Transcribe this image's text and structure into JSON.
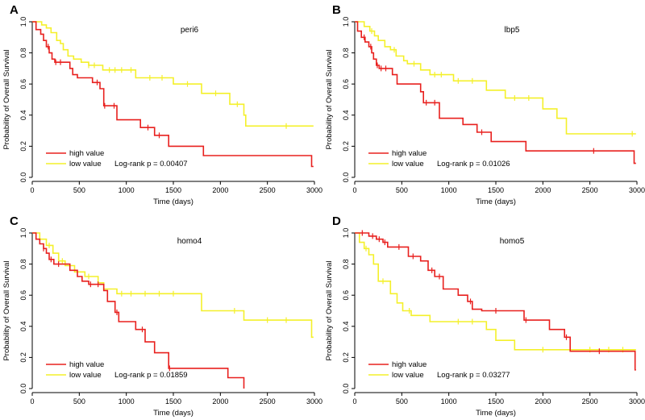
{
  "figure": {
    "panels": [
      "A",
      "B",
      "C",
      "D"
    ]
  },
  "colors": {
    "high": "#e8201e",
    "low": "#f4f02a",
    "axis": "#000000"
  },
  "chart_data": [
    {
      "type": "line",
      "panel_label": "A",
      "title": "peri6",
      "xlabel": "Time (days)",
      "ylabel": "Probability of Overall Survival",
      "xlim": [
        0,
        3000
      ],
      "ylim": [
        0,
        1
      ],
      "xticks": [
        0,
        500,
        1000,
        1500,
        2000,
        2500,
        3000
      ],
      "yticks": [
        "0.0",
        "0.2",
        "0.4",
        "0.6",
        "0.8",
        "1.0"
      ],
      "legend": [
        "high value",
        "low value"
      ],
      "pvalue": "Log-rank p = 0.00407",
      "series": [
        {
          "name": "high value",
          "color": "#e8201e",
          "steps": [
            [
              0,
              1.0
            ],
            [
              40,
              0.95
            ],
            [
              90,
              0.92
            ],
            [
              120,
              0.88
            ],
            [
              150,
              0.84
            ],
            [
              180,
              0.8
            ],
            [
              210,
              0.76
            ],
            [
              240,
              0.74
            ],
            [
              400,
              0.7
            ],
            [
              430,
              0.66
            ],
            [
              480,
              0.64
            ],
            [
              640,
              0.61
            ],
            [
              720,
              0.57
            ],
            [
              760,
              0.46
            ],
            [
              900,
              0.37
            ],
            [
              1150,
              0.32
            ],
            [
              1300,
              0.27
            ],
            [
              1450,
              0.2
            ],
            [
              1820,
              0.14
            ],
            [
              2970,
              0.07
            ]
          ],
          "censor": [
            [
              170,
              0.84
            ],
            [
              250,
              0.74
            ],
            [
              300,
              0.74
            ],
            [
              690,
              0.61
            ],
            [
              770,
              0.46
            ],
            [
              870,
              0.46
            ],
            [
              1230,
              0.32
            ],
            [
              1350,
              0.27
            ]
          ],
          "end": 2990
        },
        {
          "name": "low value",
          "color": "#f4f02a",
          "steps": [
            [
              0,
              1.0
            ],
            [
              100,
              0.98
            ],
            [
              150,
              0.96
            ],
            [
              200,
              0.93
            ],
            [
              260,
              0.88
            ],
            [
              300,
              0.86
            ],
            [
              330,
              0.82
            ],
            [
              380,
              0.78
            ],
            [
              440,
              0.76
            ],
            [
              520,
              0.74
            ],
            [
              600,
              0.72
            ],
            [
              750,
              0.69
            ],
            [
              1100,
              0.64
            ],
            [
              1500,
              0.6
            ],
            [
              1800,
              0.54
            ],
            [
              2100,
              0.47
            ],
            [
              2250,
              0.4
            ],
            [
              2270,
              0.33
            ]
          ],
          "censor": [
            [
              600,
              0.72
            ],
            [
              660,
              0.72
            ],
            [
              820,
              0.69
            ],
            [
              880,
              0.69
            ],
            [
              950,
              0.69
            ],
            [
              1050,
              0.69
            ],
            [
              1250,
              0.64
            ],
            [
              1380,
              0.64
            ],
            [
              1650,
              0.6
            ],
            [
              1950,
              0.54
            ],
            [
              2180,
              0.47
            ],
            [
              2700,
              0.33
            ]
          ],
          "end": 2990
        }
      ]
    },
    {
      "type": "line",
      "panel_label": "B",
      "title": "lbp5",
      "xlabel": "Time (days)",
      "ylabel": "Probability of Overall Survival",
      "xlim": [
        0,
        3000
      ],
      "ylim": [
        0,
        1
      ],
      "xticks": [
        0,
        500,
        1000,
        1500,
        2000,
        2500,
        3000
      ],
      "yticks": [
        "0.0",
        "0.2",
        "0.4",
        "0.6",
        "0.8",
        "1.0"
      ],
      "legend": [
        "high value",
        "low value"
      ],
      "pvalue": "Log-rank p = 0.01026",
      "series": [
        {
          "name": "high value",
          "color": "#e8201e",
          "steps": [
            [
              0,
              1.0
            ],
            [
              30,
              0.94
            ],
            [
              70,
              0.9
            ],
            [
              110,
              0.87
            ],
            [
              150,
              0.84
            ],
            [
              180,
              0.8
            ],
            [
              200,
              0.76
            ],
            [
              230,
              0.72
            ],
            [
              260,
              0.7
            ],
            [
              400,
              0.66
            ],
            [
              450,
              0.6
            ],
            [
              700,
              0.55
            ],
            [
              730,
              0.48
            ],
            [
              900,
              0.38
            ],
            [
              1150,
              0.34
            ],
            [
              1300,
              0.29
            ],
            [
              1450,
              0.23
            ],
            [
              1820,
              0.17
            ],
            [
              2970,
              0.09
            ]
          ],
          "censor": [
            [
              100,
              0.9
            ],
            [
              170,
              0.84
            ],
            [
              240,
              0.72
            ],
            [
              280,
              0.7
            ],
            [
              330,
              0.7
            ],
            [
              760,
              0.48
            ],
            [
              850,
              0.48
            ],
            [
              1350,
              0.29
            ],
            [
              2540,
              0.17
            ]
          ],
          "end": 2990
        },
        {
          "name": "low value",
          "color": "#f4f02a",
          "steps": [
            [
              0,
              1.0
            ],
            [
              100,
              0.97
            ],
            [
              160,
              0.94
            ],
            [
              210,
              0.91
            ],
            [
              250,
              0.88
            ],
            [
              320,
              0.84
            ],
            [
              380,
              0.82
            ],
            [
              440,
              0.78
            ],
            [
              520,
              0.75
            ],
            [
              560,
              0.73
            ],
            [
              700,
              0.69
            ],
            [
              800,
              0.66
            ],
            [
              1050,
              0.62
            ],
            [
              1400,
              0.56
            ],
            [
              1600,
              0.51
            ],
            [
              2000,
              0.44
            ],
            [
              2150,
              0.38
            ],
            [
              2250,
              0.28
            ]
          ],
          "censor": [
            [
              180,
              0.94
            ],
            [
              420,
              0.82
            ],
            [
              630,
              0.73
            ],
            [
              850,
              0.66
            ],
            [
              920,
              0.66
            ],
            [
              1100,
              0.62
            ],
            [
              1250,
              0.62
            ],
            [
              1700,
              0.51
            ],
            [
              1850,
              0.51
            ],
            [
              2950,
              0.28
            ]
          ],
          "end": 2990
        }
      ]
    },
    {
      "type": "line",
      "panel_label": "C",
      "title": "homo4",
      "xlabel": "Time (days)",
      "ylabel": "Probability of Overall Survival",
      "xlim": [
        0,
        3000
      ],
      "ylim": [
        0,
        1
      ],
      "xticks": [
        0,
        500,
        1000,
        1500,
        2000,
        2500,
        3000
      ],
      "yticks": [
        "0.0",
        "0.2",
        "0.4",
        "0.6",
        "0.8",
        "1.0"
      ],
      "legend": [
        "high value",
        "low value"
      ],
      "pvalue": "Log-rank p = 0.01859",
      "series": [
        {
          "name": "high value",
          "color": "#e8201e",
          "steps": [
            [
              0,
              1.0
            ],
            [
              40,
              0.96
            ],
            [
              80,
              0.93
            ],
            [
              120,
              0.9
            ],
            [
              150,
              0.87
            ],
            [
              180,
              0.83
            ],
            [
              230,
              0.8
            ],
            [
              400,
              0.76
            ],
            [
              480,
              0.72
            ],
            [
              530,
              0.69
            ],
            [
              600,
              0.67
            ],
            [
              760,
              0.63
            ],
            [
              800,
              0.56
            ],
            [
              880,
              0.49
            ],
            [
              920,
              0.43
            ],
            [
              1100,
              0.38
            ],
            [
              1200,
              0.3
            ],
            [
              1300,
              0.23
            ],
            [
              1450,
              0.13
            ],
            [
              2080,
              0.07
            ],
            [
              2250,
              0.0
            ]
          ],
          "censor": [
            [
              120,
              0.9
            ],
            [
              200,
              0.83
            ],
            [
              280,
              0.8
            ],
            [
              620,
              0.67
            ],
            [
              700,
              0.67
            ],
            [
              900,
              0.49
            ],
            [
              1170,
              0.38
            ],
            [
              1460,
              0.13
            ]
          ],
          "end": 2250
        },
        {
          "name": "low value",
          "color": "#f4f02a",
          "steps": [
            [
              0,
              1.0
            ],
            [
              80,
              0.96
            ],
            [
              150,
              0.92
            ],
            [
              220,
              0.87
            ],
            [
              280,
              0.82
            ],
            [
              350,
              0.79
            ],
            [
              450,
              0.75
            ],
            [
              560,
              0.72
            ],
            [
              700,
              0.68
            ],
            [
              760,
              0.64
            ],
            [
              900,
              0.61
            ],
            [
              1800,
              0.5
            ],
            [
              2250,
              0.44
            ],
            [
              2970,
              0.33
            ]
          ],
          "censor": [
            [
              180,
              0.92
            ],
            [
              320,
              0.82
            ],
            [
              600,
              0.72
            ],
            [
              950,
              0.61
            ],
            [
              1050,
              0.61
            ],
            [
              1200,
              0.61
            ],
            [
              1350,
              0.61
            ],
            [
              1500,
              0.61
            ],
            [
              2150,
              0.5
            ],
            [
              2500,
              0.44
            ],
            [
              2700,
              0.44
            ]
          ],
          "end": 2990
        }
      ]
    },
    {
      "type": "line",
      "panel_label": "D",
      "title": "homo5",
      "xlabel": "Time (days)",
      "ylabel": "Probability of Overall Survival",
      "xlim": [
        0,
        3000
      ],
      "ylim": [
        0,
        1
      ],
      "xticks": [
        0,
        500,
        1000,
        1500,
        2000,
        2500,
        3000
      ],
      "yticks": [
        "0.0",
        "0.2",
        "0.4",
        "0.6",
        "0.8",
        "1.0"
      ],
      "legend": [
        "high value",
        "low value"
      ],
      "pvalue": "Log-rank p = 0.03277",
      "series": [
        {
          "name": "high value",
          "color": "#e8201e",
          "steps": [
            [
              0,
              1.0
            ],
            [
              150,
              0.98
            ],
            [
              230,
              0.96
            ],
            [
              300,
              0.94
            ],
            [
              350,
              0.91
            ],
            [
              570,
              0.85
            ],
            [
              700,
              0.82
            ],
            [
              780,
              0.76
            ],
            [
              850,
              0.72
            ],
            [
              940,
              0.64
            ],
            [
              1100,
              0.6
            ],
            [
              1200,
              0.56
            ],
            [
              1250,
              0.51
            ],
            [
              1350,
              0.5
            ],
            [
              1800,
              0.44
            ],
            [
              2070,
              0.38
            ],
            [
              2230,
              0.33
            ],
            [
              2290,
              0.24
            ],
            [
              2980,
              0.12
            ]
          ],
          "censor": [
            [
              80,
              1.0
            ],
            [
              190,
              0.98
            ],
            [
              260,
              0.96
            ],
            [
              320,
              0.94
            ],
            [
              470,
              0.91
            ],
            [
              620,
              0.85
            ],
            [
              820,
              0.76
            ],
            [
              900,
              0.72
            ],
            [
              1230,
              0.56
            ],
            [
              1500,
              0.5
            ],
            [
              1820,
              0.44
            ],
            [
              2250,
              0.33
            ],
            [
              2600,
              0.24
            ]
          ],
          "end": 2990
        },
        {
          "name": "low value",
          "color": "#f4f02a",
          "steps": [
            [
              0,
              1.0
            ],
            [
              50,
              0.94
            ],
            [
              100,
              0.9
            ],
            [
              150,
              0.86
            ],
            [
              200,
              0.8
            ],
            [
              250,
              0.69
            ],
            [
              380,
              0.61
            ],
            [
              450,
              0.55
            ],
            [
              510,
              0.5
            ],
            [
              600,
              0.47
            ],
            [
              800,
              0.43
            ],
            [
              1400,
              0.38
            ],
            [
              1500,
              0.31
            ],
            [
              1700,
              0.25
            ]
          ],
          "censor": [
            [
              120,
              0.9
            ],
            [
              300,
              0.69
            ],
            [
              580,
              0.5
            ],
            [
              1100,
              0.43
            ],
            [
              1250,
              0.43
            ],
            [
              2000,
              0.25
            ],
            [
              2500,
              0.25
            ],
            [
              2700,
              0.25
            ],
            [
              2850,
              0.25
            ]
          ],
          "end": 2990
        }
      ]
    }
  ]
}
